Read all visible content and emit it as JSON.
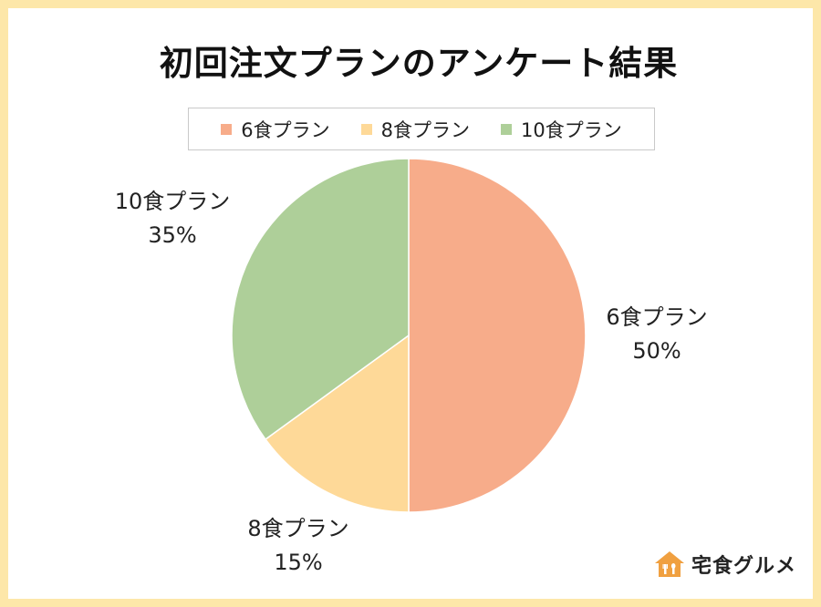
{
  "chart_data": {
    "type": "pie",
    "title": "初回注文プランのアンケート結果",
    "categories": [
      "6食プラン",
      "8食プラン",
      "10食プラン"
    ],
    "values": [
      50,
      15,
      35
    ],
    "value_labels": [
      "50%",
      "15%",
      "35%"
    ],
    "colors": [
      "#f7ac8a",
      "#fed998",
      "#aecf99"
    ],
    "legend_position": "top"
  },
  "brand": {
    "name": "宅食グルメ",
    "accent": "#f0a040"
  }
}
